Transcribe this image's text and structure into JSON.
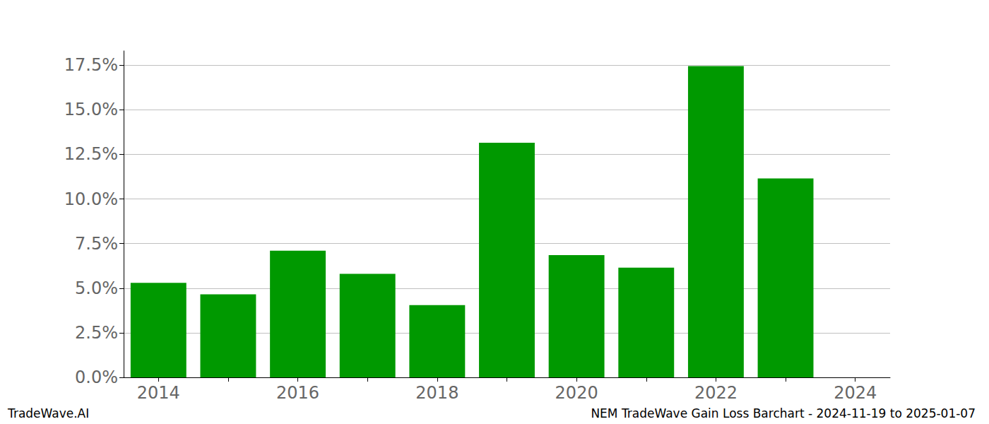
{
  "chart_data": {
    "type": "bar",
    "title": "NEM TradeWave Gain Loss Barchart - 2024-11-19 to 2025-01-07",
    "annotations": [
      "TradeWave.AI"
    ],
    "categories": [
      "2014",
      null,
      "2016",
      null,
      "2018",
      null,
      "2020",
      null,
      "2022",
      null,
      "2024"
    ],
    "values": [
      5.3,
      4.65,
      7.1,
      5.8,
      4.05,
      13.15,
      6.85,
      6.15,
      17.45,
      11.15,
      null
    ],
    "color": "#009900",
    "ylim": [
      0,
      18.3
    ],
    "yticks": [
      {
        "value": 0,
        "label": "0.0%"
      },
      {
        "value": 2.5,
        "label": "2.5%"
      },
      {
        "value": 5,
        "label": "5.0%"
      },
      {
        "value": 7.5,
        "label": "7.5%"
      },
      {
        "value": 10,
        "label": "10.0%"
      },
      {
        "value": 12.5,
        "label": "12.5%"
      },
      {
        "value": 15,
        "label": "15.0%"
      },
      {
        "value": 17.5,
        "label": "17.5%"
      }
    ],
    "grid": true
  }
}
